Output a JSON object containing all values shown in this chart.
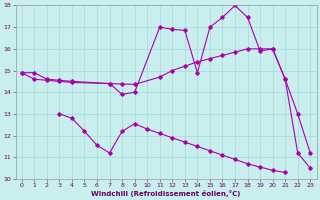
{
  "xlabel": "Windchill (Refroidissement éolien,°C)",
  "background_color": "#c8eeee",
  "grid_color": "#aadddd",
  "line_color": "#aa00aa",
  "xlim": [
    -0.5,
    23.5
  ],
  "ylim": [
    10,
    18
  ],
  "xticks": [
    0,
    1,
    2,
    3,
    4,
    5,
    6,
    7,
    8,
    9,
    10,
    11,
    12,
    13,
    14,
    15,
    16,
    17,
    18,
    19,
    20,
    21,
    22,
    23
  ],
  "yticks": [
    10,
    11,
    12,
    13,
    14,
    15,
    16,
    17,
    18
  ],
  "line1_x": [
    0,
    1,
    2,
    3,
    4,
    7,
    8,
    9,
    11,
    12,
    13,
    14,
    15,
    16,
    17,
    18,
    19,
    20,
    21,
    22,
    23
  ],
  "line1_y": [
    14.9,
    14.9,
    14.6,
    14.55,
    14.5,
    14.4,
    13.9,
    14.0,
    17.0,
    16.9,
    16.85,
    14.9,
    17.0,
    17.45,
    18.0,
    17.45,
    15.9,
    16.0,
    14.6,
    13.0,
    11.2
  ],
  "line2_x": [
    0,
    1,
    2,
    3,
    4,
    7,
    8,
    9,
    11,
    12,
    13,
    14,
    15,
    16,
    17,
    18,
    19,
    20,
    21,
    22,
    23
  ],
  "line2_y": [
    14.9,
    14.6,
    14.55,
    14.5,
    14.45,
    14.4,
    14.38,
    14.36,
    14.7,
    15.0,
    15.2,
    15.4,
    15.55,
    15.7,
    15.85,
    16.0,
    16.0,
    16.0,
    14.6,
    11.2,
    10.5
  ],
  "line3_x": [
    3,
    4,
    5,
    6,
    7,
    8,
    9,
    10,
    11,
    12,
    13,
    14,
    15,
    16,
    17,
    18,
    19,
    20,
    21
  ],
  "line3_y": [
    13.0,
    12.8,
    12.2,
    11.55,
    11.2,
    12.2,
    12.55,
    12.3,
    12.1,
    11.9,
    11.7,
    11.5,
    11.3,
    11.1,
    10.9,
    10.7,
    10.55,
    10.4,
    10.3
  ]
}
